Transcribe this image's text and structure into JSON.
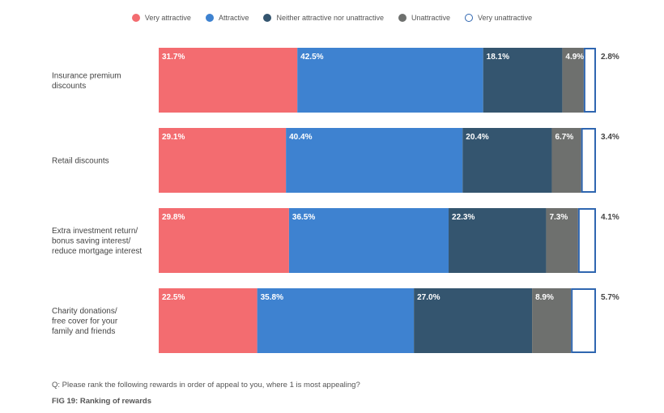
{
  "chart_data": {
    "type": "bar",
    "orientation": "horizontal",
    "stacked": true,
    "categories": [
      [
        "Insurance premium",
        "discounts"
      ],
      [
        "Retail discounts"
      ],
      [
        "Extra investment return/",
        "bonus saving interest/",
        "reduce mortgage interest"
      ],
      [
        "Charity donations/",
        "free cover for your",
        "family and friends"
      ]
    ],
    "series": [
      {
        "name": "Very attractive",
        "color": "#f36c70",
        "values": [
          31.7,
          29.1,
          29.8,
          22.5
        ]
      },
      {
        "name": "Attractive",
        "color": "#3e82d0",
        "values": [
          42.5,
          40.4,
          36.5,
          35.8
        ]
      },
      {
        "name": "Neither attractive nor unattractive",
        "color": "#34556f",
        "values": [
          18.1,
          20.4,
          22.3,
          27.0
        ]
      },
      {
        "name": "Unattractive",
        "color": "#6e706e",
        "values": [
          4.9,
          6.7,
          7.3,
          8.9
        ]
      },
      {
        "name": "Very unattractive",
        "color": "#ffffff",
        "stroke": "#2f66b0",
        "values": [
          2.8,
          3.4,
          4.1,
          5.7
        ]
      }
    ],
    "value_suffix": "%",
    "legend_position": "top-center",
    "grid": false
  },
  "question": "Q: Please rank the following rewards in order of appeal to you, where 1 is most appealing?",
  "figure_title": "FIG 19: Ranking of rewards"
}
